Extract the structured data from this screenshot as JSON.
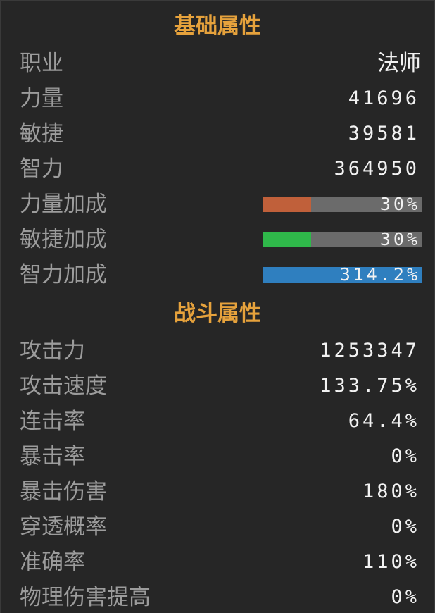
{
  "sections": [
    {
      "title": "基础属性",
      "rows": [
        {
          "label": "职业",
          "value": "法师"
        },
        {
          "label": "力量",
          "value": 41696
        },
        {
          "label": "敏捷",
          "value": 39581
        },
        {
          "label": "智力",
          "value": 364950
        },
        {
          "label": "力量加成",
          "value": 30,
          "value_label": "30%",
          "color": "#c0603a"
        },
        {
          "label": "敏捷加成",
          "value": 30,
          "value_label": "30%",
          "color": "#2fb84a"
        },
        {
          "label": "智力加成",
          "value": 314.2,
          "value_label": "314.2%",
          "color": "#2f7fbf"
        }
      ]
    },
    {
      "title": "战斗属性",
      "rows": [
        {
          "label": "攻击力",
          "value": 1253347
        },
        {
          "label": "攻击速度",
          "value": "133.75%"
        },
        {
          "label": "连击率",
          "value": "64.4%"
        },
        {
          "label": "暴击率",
          "value": "0%"
        },
        {
          "label": "暴击伤害",
          "value": "180%"
        },
        {
          "label": "穿透概率",
          "value": "0%"
        },
        {
          "label": "准确率",
          "value": "110%"
        },
        {
          "label": "物理伤害提高",
          "value": "0%"
        }
      ]
    }
  ]
}
